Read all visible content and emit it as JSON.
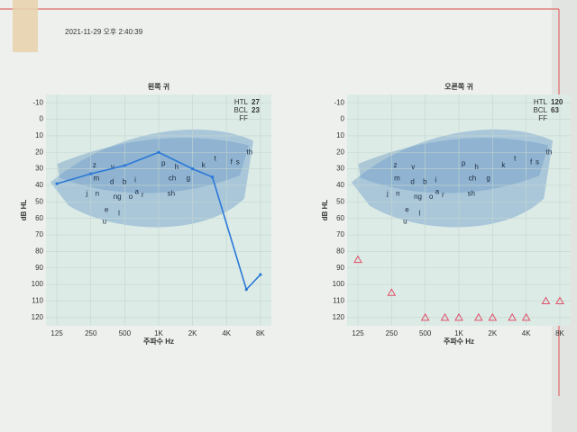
{
  "timestamp": "2021-11-29 오후 2:40:39",
  "speech_sounds": [
    {
      "label": "z",
      "hz": 270,
      "db": 28
    },
    {
      "label": "v",
      "hz": 390,
      "db": 29
    },
    {
      "label": "p",
      "hz": 1100,
      "db": 27
    },
    {
      "label": "h",
      "hz": 1440,
      "db": 29
    },
    {
      "label": "k",
      "hz": 2500,
      "db": 28
    },
    {
      "label": "t",
      "hz": 3180,
      "db": 24
    },
    {
      "label": "f",
      "hz": 4430,
      "db": 26
    },
    {
      "label": "s",
      "hz": 5030,
      "db": 26
    },
    {
      "label": "th",
      "hz": 6400,
      "db": 20
    },
    {
      "label": "m",
      "hz": 280,
      "db": 36
    },
    {
      "label": "d",
      "hz": 385,
      "db": 38
    },
    {
      "label": "b",
      "hz": 497,
      "db": 38
    },
    {
      "label": "i",
      "hz": 620,
      "db": 37
    },
    {
      "label": "ch",
      "hz": 1320,
      "db": 36
    },
    {
      "label": "g",
      "hz": 1830,
      "db": 36
    },
    {
      "label": "j",
      "hz": 230,
      "db": 45
    },
    {
      "label": "n",
      "hz": 285,
      "db": 45
    },
    {
      "label": "ng",
      "hz": 430,
      "db": 47
    },
    {
      "label": "o",
      "hz": 565,
      "db": 47
    },
    {
      "label": "a",
      "hz": 640,
      "db": 44
    },
    {
      "label": "r",
      "hz": 720,
      "db": 46
    },
    {
      "label": "sh",
      "hz": 1290,
      "db": 45
    },
    {
      "label": "e",
      "hz": 344,
      "db": 55
    },
    {
      "label": "l",
      "hz": 445,
      "db": 57
    },
    {
      "label": "u",
      "hz": 330,
      "db": 62
    }
  ],
  "chart_data": [
    {
      "type": "line",
      "title": "왼쪽 귀",
      "xlabel": "주파수 Hz",
      "ylabel": "dB HL",
      "xscale": "log",
      "y_inverted": true,
      "xlim": [
        100,
        10000
      ],
      "ylim": [
        -15,
        125
      ],
      "xticks": [
        125,
        250,
        500,
        {
          "value": 1000,
          "label": "1K"
        },
        {
          "value": 2000,
          "label": "2K"
        },
        {
          "value": 4000,
          "label": "4K"
        },
        {
          "value": 8000,
          "label": "8K"
        }
      ],
      "yticks": [
        -10,
        0,
        10,
        20,
        30,
        40,
        50,
        60,
        70,
        80,
        90,
        100,
        110,
        120
      ],
      "grid": true,
      "stats_color": "#1a3fa0",
      "stats": [
        {
          "label": "HTL",
          "value": 27
        },
        {
          "label": "BCL",
          "value": 23
        },
        {
          "label": "FF"
        }
      ],
      "series": [
        {
          "color": "#2a78d8",
          "x": [
            125,
            250,
            500,
            1000,
            2000,
            3000,
            6000,
            8000
          ],
          "values": [
            39,
            33,
            28,
            20,
            30,
            35,
            103,
            94
          ]
        }
      ]
    },
    {
      "type": "scatter",
      "title": "오른쪽 귀",
      "xlabel": "주파수 Hz",
      "ylabel": "dB HL",
      "xscale": "log",
      "y_inverted": true,
      "xlim": [
        100,
        10000
      ],
      "ylim": [
        -15,
        125
      ],
      "xticks": [
        125,
        250,
        500,
        {
          "value": 1000,
          "label": "1K"
        },
        {
          "value": 2000,
          "label": "2K"
        },
        {
          "value": 4000,
          "label": "4K"
        },
        {
          "value": 8000,
          "label": "8K"
        }
      ],
      "yticks": [
        -10,
        0,
        10,
        20,
        30,
        40,
        50,
        60,
        70,
        80,
        90,
        100,
        110,
        120
      ],
      "grid": true,
      "stats_color": "#c8283c",
      "stats": [
        {
          "label": "HTL",
          "value": 120
        },
        {
          "label": "BCL",
          "value": 63
        },
        {
          "label": "FF"
        }
      ],
      "series": [
        {
          "color": "#e0506a",
          "marker": "triangle",
          "x": [
            125,
            250,
            500,
            750,
            1000,
            1500,
            2000,
            3000,
            4000,
            6000,
            8000
          ],
          "values": [
            85,
            105,
            120,
            120,
            120,
            120,
            120,
            120,
            120,
            110,
            110
          ]
        }
      ]
    }
  ]
}
